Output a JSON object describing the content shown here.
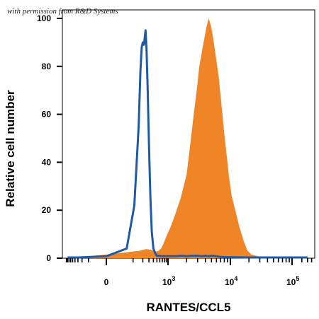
{
  "watermark": "with permission from R&D Systems",
  "chart_data": {
    "type": "area",
    "xlabel": "RANTES/CCL5",
    "ylabel": "Relative cell number",
    "x_scale": "biexponential",
    "x_tick_labels": [
      {
        "base": "0",
        "exp": ""
      },
      {
        "base": "10",
        "exp": "3"
      },
      {
        "base": "10",
        "exp": "4"
      },
      {
        "base": "10",
        "exp": "5"
      }
    ],
    "y_ticks": [
      0,
      20,
      40,
      60,
      80,
      100
    ],
    "ylim": [
      0,
      100
    ],
    "grid": false,
    "legend": "none",
    "series": [
      {
        "style": "outline",
        "color": "#1f5aa6",
        "points": [
          [
            -800,
            0.3
          ],
          [
            -300,
            0.3
          ],
          [
            0,
            0.8
          ],
          [
            60,
            4
          ],
          [
            110,
            22
          ],
          [
            150,
            55
          ],
          [
            170,
            78
          ],
          [
            185,
            88
          ],
          [
            200,
            90
          ],
          [
            215,
            89
          ],
          [
            228,
            92
          ],
          [
            240,
            95
          ],
          [
            255,
            88
          ],
          [
            275,
            72
          ],
          [
            300,
            48
          ],
          [
            330,
            25
          ],
          [
            360,
            11
          ],
          [
            400,
            4
          ],
          [
            450,
            2
          ],
          [
            500,
            1
          ],
          [
            700,
            0.8
          ],
          [
            1000,
            0.8
          ],
          [
            1300,
            0.8
          ],
          [
            1700,
            1
          ],
          [
            2000,
            0.8
          ],
          [
            2500,
            1
          ],
          [
            3000,
            1
          ],
          [
            3500,
            0.8
          ],
          [
            4000,
            1
          ],
          [
            4500,
            0.8
          ],
          [
            5000,
            1
          ],
          [
            6000,
            0.8
          ],
          [
            7000,
            0.5
          ],
          [
            9000,
            0.4
          ],
          [
            20000,
            0.3
          ],
          [
            80000,
            0.3
          ],
          [
            300000,
            0.3
          ]
        ]
      },
      {
        "style": "filled",
        "color": "#f08528",
        "points": [
          [
            -800,
            0.3
          ],
          [
            -200,
            0.5
          ],
          [
            0,
            1.5
          ],
          [
            150,
            3
          ],
          [
            250,
            3.8
          ],
          [
            350,
            3.5
          ],
          [
            450,
            2.8
          ],
          [
            550,
            3
          ],
          [
            650,
            4
          ],
          [
            750,
            6
          ],
          [
            900,
            9
          ],
          [
            1100,
            13
          ],
          [
            1300,
            18
          ],
          [
            1600,
            25
          ],
          [
            2000,
            35
          ],
          [
            2300,
            48
          ],
          [
            2600,
            60
          ],
          [
            2900,
            70
          ],
          [
            3200,
            80
          ],
          [
            3500,
            86
          ],
          [
            3800,
            91
          ],
          [
            4200,
            97
          ],
          [
            4500,
            100
          ],
          [
            4900,
            97
          ],
          [
            5300,
            92
          ],
          [
            5800,
            85
          ],
          [
            6500,
            76
          ],
          [
            7200,
            64
          ],
          [
            8000,
            52
          ],
          [
            8800,
            42
          ],
          [
            9500,
            34
          ],
          [
            10500,
            26
          ],
          [
            12000,
            20
          ],
          [
            14000,
            13
          ],
          [
            16500,
            7
          ],
          [
            19000,
            3
          ],
          [
            22000,
            1.5
          ],
          [
            30000,
            0.6
          ],
          [
            60000,
            0.3
          ],
          [
            300000,
            0.3
          ]
        ]
      }
    ]
  }
}
